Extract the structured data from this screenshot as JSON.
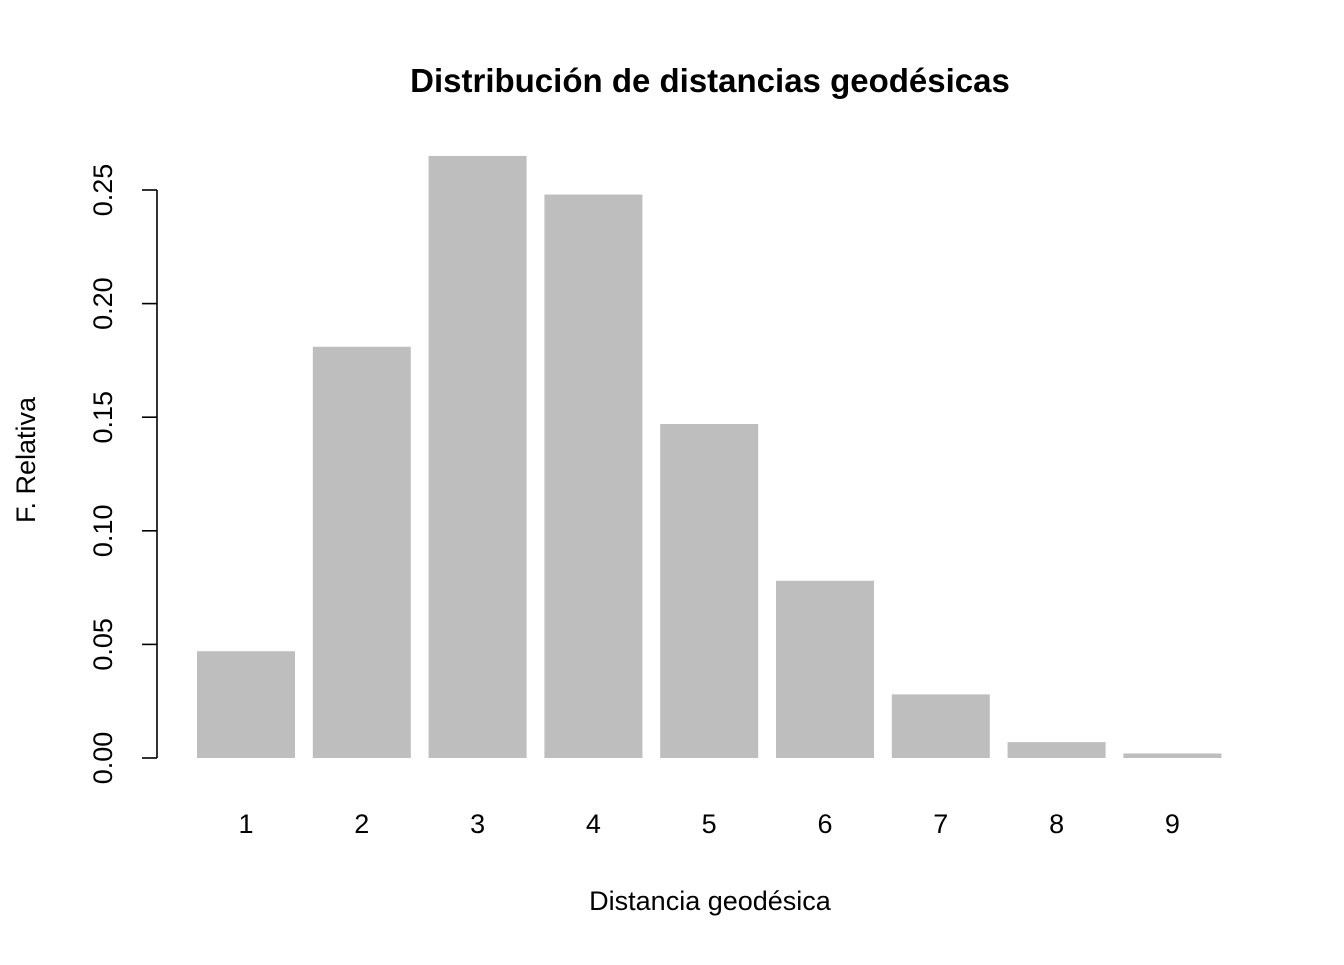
{
  "chart_data": {
    "type": "bar",
    "title": "Distribución de distancias geodésicas",
    "xlabel": "Distancia geodésica",
    "ylabel": "F. Relativa",
    "categories": [
      "1",
      "2",
      "3",
      "4",
      "5",
      "6",
      "7",
      "8",
      "9"
    ],
    "values": [
      0.047,
      0.181,
      0.265,
      0.248,
      0.147,
      0.078,
      0.028,
      0.007,
      0.002
    ],
    "ylim": [
      0,
      0.27
    ],
    "yticks": [
      "0.00",
      "0.05",
      "0.10",
      "0.15",
      "0.20",
      "0.25"
    ],
    "bar_color": "#bebebe",
    "grid": false,
    "legend": "none"
  }
}
